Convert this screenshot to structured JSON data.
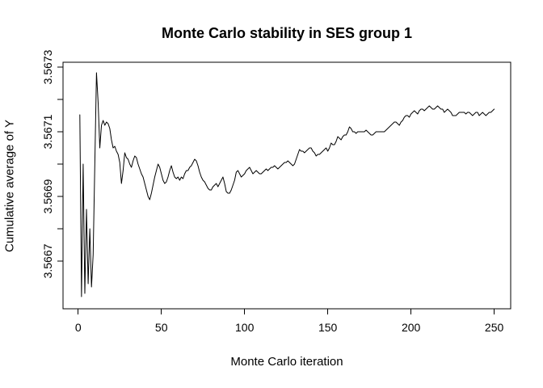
{
  "chart_data": {
    "type": "line",
    "title": "Monte Carlo stability in SES group 1",
    "xlabel": "Monte Carlo iteration",
    "ylabel": "Cumulative average of Y",
    "legend": "none",
    "grid": false,
    "background": "#ffffff",
    "line_color": "#000000",
    "axis_color": "#000000",
    "x_ticks": [
      0,
      50,
      100,
      150,
      200,
      250
    ],
    "x_tick_labels": [
      "0",
      "50",
      "100",
      "150",
      "200",
      "250"
    ],
    "y_ticks": [
      3.5667,
      3.5668,
      3.5669,
      3.567,
      3.5671,
      3.5672,
      3.5673
    ],
    "y_tick_labels": [
      "3.5667",
      "",
      "3.5669",
      "",
      "3.5671",
      "",
      "3.5673"
    ],
    "xlim": [
      -9.1,
      259.9
    ],
    "ylim": [
      3.5665525,
      3.567315
    ],
    "x_start": 1,
    "n_points": 250,
    "series": [
      {
        "name": "cumulative-average-of-Y",
        "values": [
          3.5671525,
          3.56659,
          3.567,
          3.5666,
          3.56686,
          3.56663,
          3.5668,
          3.56662,
          3.56672,
          3.567,
          3.5672825,
          3.56719,
          3.56705,
          3.56712,
          3.567135,
          3.56712,
          3.56713,
          3.567125,
          3.56711,
          3.567075,
          3.56705,
          3.567055,
          3.56704,
          3.56703,
          3.567005,
          3.56694,
          3.56698,
          3.567035,
          3.56702,
          3.567015,
          3.567,
          3.56699,
          3.56701,
          3.567025,
          3.56702,
          3.567,
          3.566985,
          3.56697,
          3.56696,
          3.56694,
          3.56692,
          3.5669,
          3.56689,
          3.56691,
          3.566935,
          3.56696,
          3.56698,
          3.567,
          3.56699,
          3.56697,
          3.56695,
          3.56694,
          3.566945,
          3.56696,
          3.56698,
          3.566995,
          3.566975,
          3.56696,
          3.566955,
          3.56696,
          3.56695,
          3.56696,
          3.566955,
          3.56697,
          3.56698,
          3.56698,
          3.56699,
          3.566995,
          3.567005,
          3.567015,
          3.56701,
          3.566995,
          3.566975,
          3.56696,
          3.56695,
          3.566945,
          3.566935,
          3.566925,
          3.56692,
          3.56692,
          3.56693,
          3.566935,
          3.56694,
          3.56693,
          3.56694,
          3.56695,
          3.56696,
          3.56694,
          3.566915,
          3.56691,
          3.56691,
          3.56692,
          3.566935,
          3.56695,
          3.566975,
          3.56698,
          3.56697,
          3.56696,
          3.566965,
          3.56697,
          3.56698,
          3.566985,
          3.56699,
          3.56698,
          3.56697,
          3.566975,
          3.56698,
          3.566975,
          3.56697,
          3.56697,
          3.566975,
          3.56698,
          3.566985,
          3.56698,
          3.566985,
          3.56699,
          3.56699,
          3.566995,
          3.56699,
          3.566985,
          3.56699,
          3.566995,
          3.567,
          3.567005,
          3.567005,
          3.56701,
          3.567005,
          3.567,
          3.566995,
          3.567,
          3.567015,
          3.56703,
          3.567045,
          3.56704,
          3.56704,
          3.567035,
          3.56704,
          3.567045,
          3.56705,
          3.56705,
          3.56704,
          3.567035,
          3.567025,
          3.56703,
          3.56703,
          3.567035,
          3.56704,
          3.567045,
          3.56705,
          3.56704,
          3.56705,
          3.567065,
          3.56706,
          3.56706,
          3.56707,
          3.567085,
          3.56708,
          3.567075,
          3.567085,
          3.56709,
          3.56709,
          3.5671,
          3.567115,
          3.56711,
          3.5671,
          3.5671,
          3.567095,
          3.5671,
          3.5671,
          3.5671,
          3.5671,
          3.5671,
          3.567105,
          3.5671,
          3.567095,
          3.56709,
          3.56709,
          3.567095,
          3.5671,
          3.5671,
          3.5671,
          3.5671,
          3.5671,
          3.5671,
          3.567105,
          3.56711,
          3.567115,
          3.56712,
          3.567125,
          3.56713,
          3.56713,
          3.567125,
          3.56712,
          3.56713,
          3.567135,
          3.567145,
          3.56715,
          3.56715,
          3.567145,
          3.567155,
          3.56716,
          3.567165,
          3.56716,
          3.567155,
          3.567165,
          3.56717,
          3.56717,
          3.567165,
          3.56717,
          3.567175,
          3.56718,
          3.567175,
          3.56717,
          3.56717,
          3.567175,
          3.56718,
          3.567175,
          3.56717,
          3.56717,
          3.56716,
          3.567165,
          3.56717,
          3.567165,
          3.56716,
          3.56715,
          3.56715,
          3.56715,
          3.567155,
          3.56716,
          3.56716,
          3.56716,
          3.56716,
          3.567155,
          3.56716,
          3.56716,
          3.567155,
          3.56715,
          3.567155,
          3.56716,
          3.56716,
          3.56715,
          3.567155,
          3.56716,
          3.567155,
          3.56715,
          3.567155,
          3.56716,
          3.56716,
          3.567165,
          3.56717
        ]
      }
    ]
  }
}
